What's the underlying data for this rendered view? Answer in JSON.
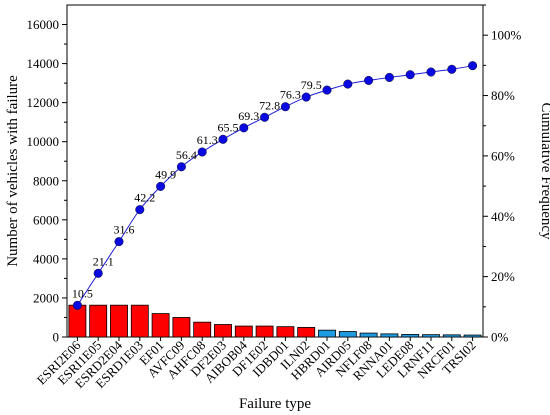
{
  "chart_data": {
    "type": "bar",
    "title": "",
    "xlabel": "Failure type",
    "ylabel": "Number of vehicles with failure",
    "y2label": "Cumulative Frequency",
    "ylim": [
      0,
      17000
    ],
    "y2lim": [
      0,
      110
    ],
    "y_ticks": [
      "0",
      "2000",
      "4000",
      "6000",
      "8000",
      "10000",
      "12000",
      "14000",
      "16000"
    ],
    "y2_ticks": [
      "0%",
      "20%",
      "40%",
      "60%",
      "80%",
      "100%"
    ],
    "grid": false,
    "colors": {
      "bar_primary": "#ff0000",
      "bar_secondary": "#1e9be0",
      "line": "#1f1fd6",
      "marker": "#0a0ae0"
    },
    "categories": [
      "ESRI2E06",
      "ESRI1E05",
      "ESRD2E04",
      "ESRD1E03",
      "EF01",
      "AVFC09",
      "AHFC08",
      "DF2E03",
      "AIBOB04",
      "DF1E02",
      "IDBD01",
      "ILN02",
      "HBRD01",
      "AIRD05",
      "NFLF08",
      "RNNA01",
      "LEDE08",
      "LRNF11",
      "NRCF01",
      "TRSI02"
    ],
    "series": [
      {
        "kind": "bar",
        "values": [
          1630,
          1630,
          1630,
          1630,
          1200,
          1000,
          760,
          640,
          560,
          560,
          530,
          490,
          350,
          280,
          200,
          160,
          130,
          120,
          110,
          100
        ],
        "color_group": [
          "primary",
          "primary",
          "primary",
          "primary",
          "primary",
          "primary",
          "primary",
          "primary",
          "primary",
          "primary",
          "primary",
          "primary",
          "secondary",
          "secondary",
          "secondary",
          "secondary",
          "secondary",
          "secondary",
          "secondary",
          "secondary"
        ]
      },
      {
        "kind": "line",
        "axis": "right",
        "values": [
          10.5,
          21.1,
          31.6,
          42.2,
          49.9,
          56.4,
          61.3,
          65.5,
          69.3,
          72.8,
          76.3,
          79.5,
          81.8,
          83.8,
          85.0,
          86.0,
          86.9,
          87.8,
          88.7,
          89.9
        ]
      }
    ],
    "data_labels": [
      "10.5",
      "21.1",
      "31.6",
      "42.2",
      "49.9",
      "56.4",
      "61.3",
      "65.5",
      "69.3",
      "72.8",
      "76.3",
      "79.5"
    ]
  }
}
